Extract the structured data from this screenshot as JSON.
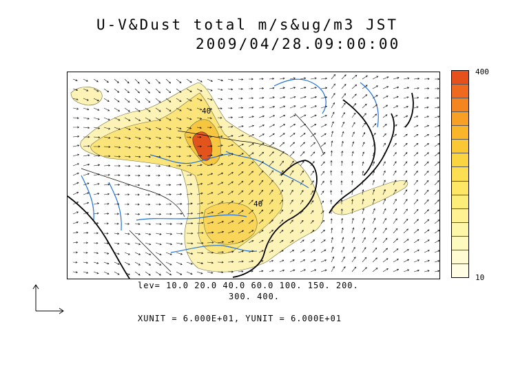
{
  "title": "U-V&Dust total m/s&ug/m3 JST",
  "subtitle": "2009/04/28.09:00:00",
  "colorbar": {
    "max_label": "400",
    "min_label": "10",
    "colors": [
      "#e6501a",
      "#ef6a1e",
      "#f5861f",
      "#f8a025",
      "#f9b62a",
      "#fac735",
      "#fbd442",
      "#fcde52",
      "#fde764",
      "#fdee7a",
      "#fef292",
      "#fef6a8",
      "#fef9be",
      "#fffbd2",
      "#fffde3"
    ]
  },
  "levels_line1": "lev= 10.0 20.0 40.0 60.0 100. 150. 200.",
  "levels_line2": "300. 400.",
  "unit_note": "XUNIT = 6.000E+01, YUNIT = 6.000E+01",
  "contour_labels": [
    "40",
    "40"
  ],
  "colors": {
    "river": "#1e6fd9",
    "coast": "#000000",
    "dust_light": "#fdf3b6",
    "dust_mid": "#fbe57a",
    "dust_high": "#f7c640",
    "dust_peak": "#e2541b"
  }
}
